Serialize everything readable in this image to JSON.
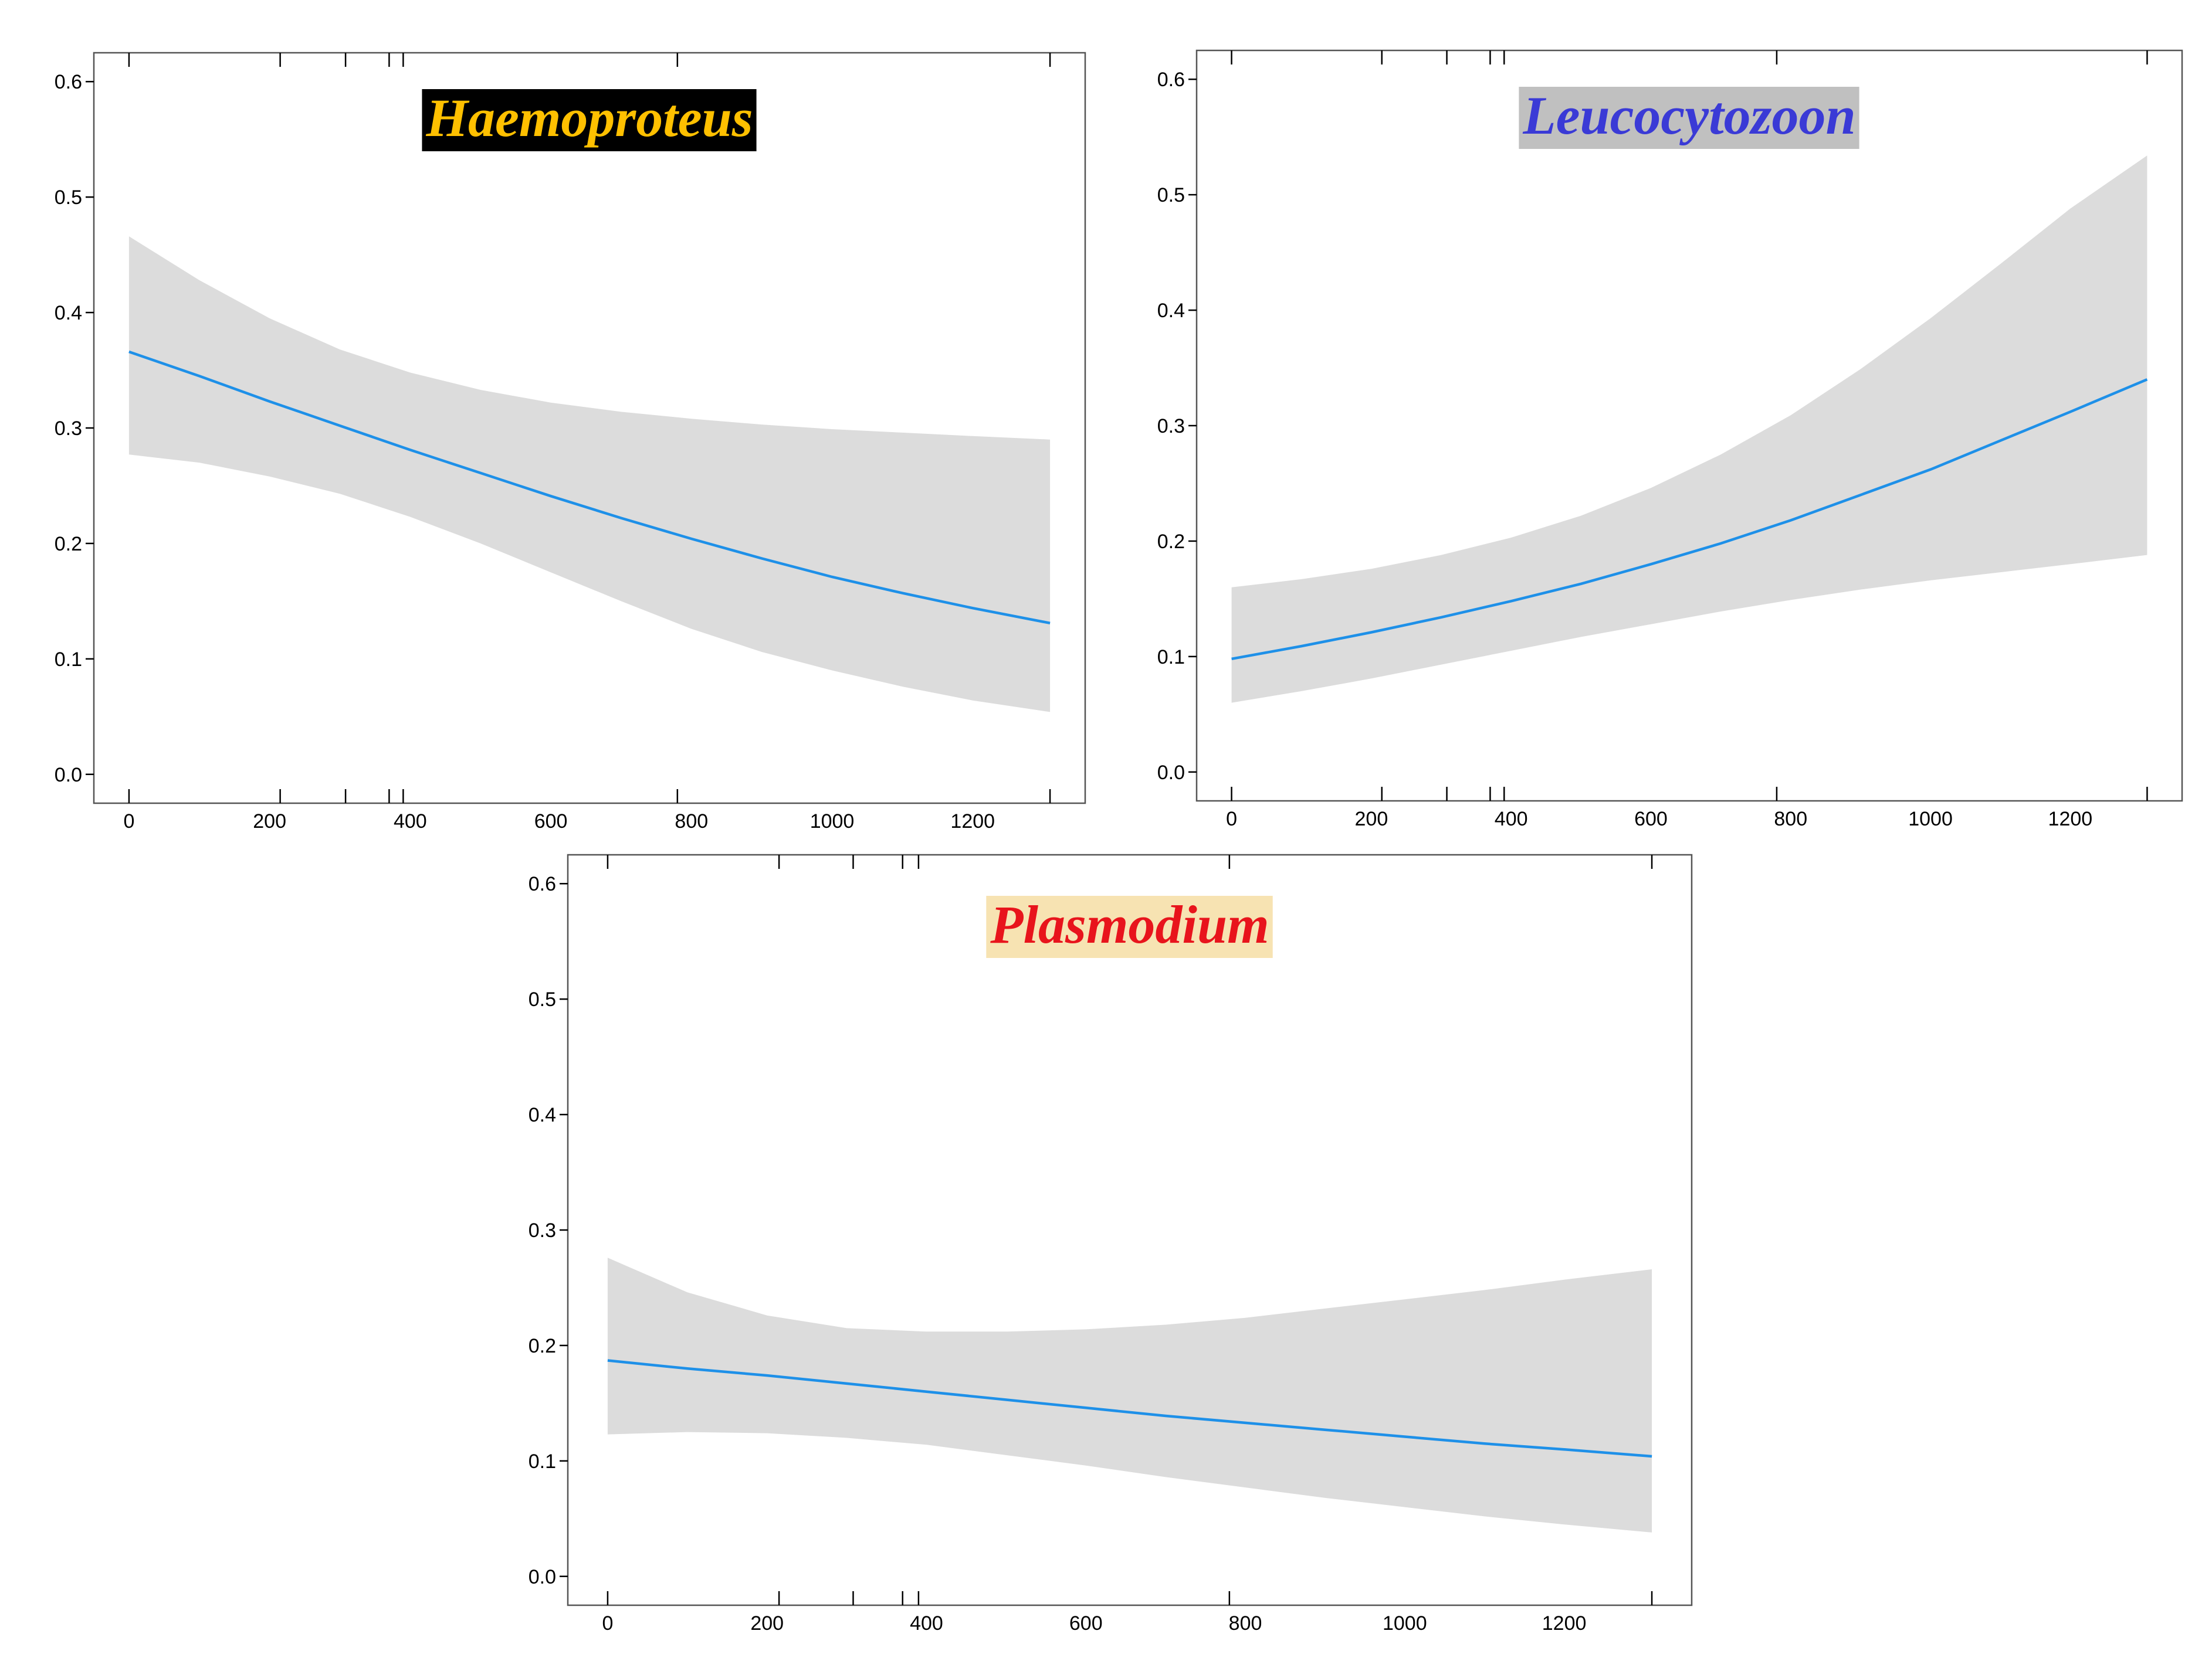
{
  "chart_data": [
    {
      "type": "line",
      "title": "Haemoproteus",
      "title_color": "#FFC000",
      "title_bg": "#000000",
      "line_color": "#1E90E8",
      "band_color": "#DCDCDC",
      "xlim": [
        -50,
        1360
      ],
      "ylim": [
        -0.025,
        0.625
      ],
      "xticks": [
        0,
        200,
        400,
        600,
        800,
        1000,
        1200
      ],
      "yticks": [
        0.0,
        0.1,
        0.2,
        0.3,
        0.4,
        0.5,
        0.6
      ],
      "ytick_labels": [
        "0.0",
        "0.1",
        "0.2",
        "0.3",
        "0.4",
        "0.5",
        "0.6"
      ],
      "rug": [
        0,
        215,
        308,
        370,
        390,
        780,
        1310
      ],
      "x": [
        0,
        100,
        200,
        300,
        400,
        500,
        600,
        700,
        800,
        900,
        1000,
        1100,
        1200,
        1310
      ],
      "y": [
        0.366,
        0.345,
        0.323,
        0.302,
        0.281,
        0.261,
        0.241,
        0.222,
        0.204,
        0.187,
        0.171,
        0.157,
        0.144,
        0.131
      ],
      "lower": [
        0.277,
        0.27,
        0.258,
        0.243,
        0.223,
        0.2,
        0.175,
        0.15,
        0.126,
        0.106,
        0.09,
        0.076,
        0.064,
        0.054
      ],
      "upper": [
        0.466,
        0.428,
        0.395,
        0.368,
        0.348,
        0.333,
        0.322,
        0.314,
        0.308,
        0.303,
        0.299,
        0.296,
        0.293,
        0.29
      ]
    },
    {
      "type": "line",
      "title": "Leucocytozoon",
      "title_color": "#3A3AD6",
      "title_bg": "#C0C0C0",
      "line_color": "#1E90E8",
      "band_color": "#DCDCDC",
      "xlim": [
        -50,
        1360
      ],
      "ylim": [
        -0.025,
        0.625
      ],
      "xticks": [
        0,
        200,
        400,
        600,
        800,
        1000,
        1200
      ],
      "yticks": [
        0.0,
        0.1,
        0.2,
        0.3,
        0.4,
        0.5,
        0.6
      ],
      "ytick_labels": [
        "0.0",
        "0.1",
        "0.2",
        "0.3",
        "0.4",
        "0.5",
        "0.6"
      ],
      "rug": [
        0,
        215,
        308,
        370,
        390,
        780,
        1310
      ],
      "x": [
        0,
        100,
        200,
        300,
        400,
        500,
        600,
        700,
        800,
        900,
        1000,
        1100,
        1200,
        1310
      ],
      "y": [
        0.098,
        0.109,
        0.121,
        0.134,
        0.148,
        0.163,
        0.18,
        0.198,
        0.218,
        0.24,
        0.262,
        0.287,
        0.312,
        0.34
      ],
      "lower": [
        0.06,
        0.07,
        0.081,
        0.093,
        0.105,
        0.117,
        0.128,
        0.139,
        0.149,
        0.158,
        0.166,
        0.173,
        0.18,
        0.188
      ],
      "upper": [
        0.16,
        0.167,
        0.176,
        0.188,
        0.203,
        0.222,
        0.246,
        0.275,
        0.309,
        0.349,
        0.393,
        0.44,
        0.488,
        0.534
      ]
    },
    {
      "type": "line",
      "title": "Plasmodium",
      "title_color": "#E8141C",
      "title_bg": "#F7E3B2",
      "line_color": "#1E90E8",
      "band_color": "#DCDCDC",
      "xlim": [
        -50,
        1360
      ],
      "ylim": [
        -0.025,
        0.625
      ],
      "xticks": [
        0,
        200,
        400,
        600,
        800,
        1000,
        1200
      ],
      "yticks": [
        0.0,
        0.1,
        0.2,
        0.3,
        0.4,
        0.5,
        0.6
      ],
      "ytick_labels": [
        "0.0",
        "0.1",
        "0.2",
        "0.3",
        "0.4",
        "0.5",
        "0.6"
      ],
      "rug": [
        0,
        215,
        308,
        370,
        390,
        780,
        1310
      ],
      "x": [
        0,
        100,
        200,
        300,
        400,
        500,
        600,
        700,
        800,
        900,
        1000,
        1100,
        1200,
        1310
      ],
      "y": [
        0.187,
        0.18,
        0.174,
        0.167,
        0.16,
        0.153,
        0.146,
        0.139,
        0.133,
        0.127,
        0.121,
        0.115,
        0.11,
        0.104
      ],
      "lower": [
        0.123,
        0.125,
        0.124,
        0.12,
        0.114,
        0.105,
        0.096,
        0.086,
        0.077,
        0.068,
        0.06,
        0.052,
        0.045,
        0.038
      ],
      "upper": [
        0.276,
        0.246,
        0.226,
        0.215,
        0.212,
        0.212,
        0.214,
        0.218,
        0.224,
        0.232,
        0.24,
        0.248,
        0.257,
        0.266
      ]
    }
  ]
}
